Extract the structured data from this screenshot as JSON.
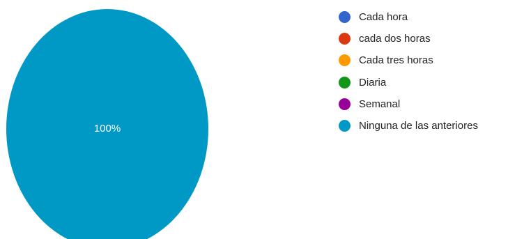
{
  "chart_data": {
    "type": "pie",
    "categories": [
      "Cada hora",
      "cada dos horas",
      "Cada tres horas",
      "Diaria",
      "Semanal",
      "Ninguna de las anteriores"
    ],
    "values": [
      0,
      0,
      0,
      0,
      0,
      100
    ],
    "colors": [
      "#3366cc",
      "#dc3912",
      "#ff9900",
      "#109618",
      "#990099",
      "#0099c6"
    ],
    "slice_labels": [
      "",
      "",
      "",
      "",
      "",
      "100%"
    ],
    "legend_position": "right"
  }
}
